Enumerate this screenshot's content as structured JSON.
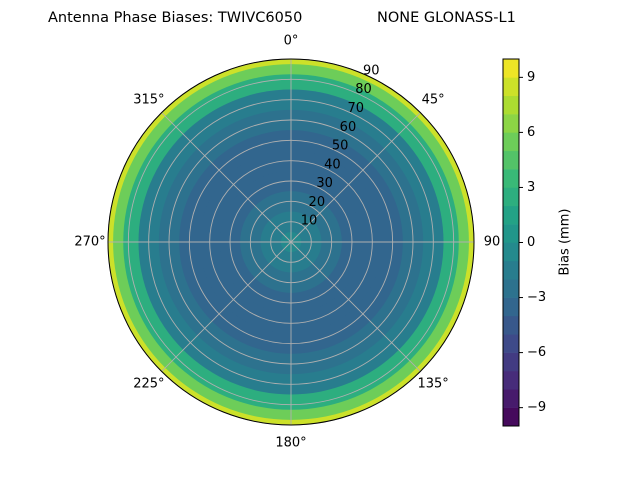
{
  "chart_data": {
    "type": "polar-contour",
    "title": "Antenna Phase Biases: TWIVC6050",
    "subtitle": "NONE GLONASS-L1",
    "angle_labels": [
      "0°",
      "45°",
      "90",
      "135°",
      "180°",
      "225°",
      "270°",
      "315°"
    ],
    "rlim": [
      0,
      90
    ],
    "rticks": [
      10,
      20,
      30,
      40,
      50,
      60,
      70,
      80,
      90
    ],
    "grid": true,
    "contour": {
      "zenith": [
        0,
        10,
        20,
        30,
        40,
        50,
        60,
        70,
        80,
        85,
        90
      ],
      "bias": [
        -1,
        -1.5,
        -2.5,
        -3.5,
        -4,
        -4,
        -3,
        -1.5,
        2,
        5,
        8
      ]
    },
    "colorbar": {
      "label": "Bias (mm)",
      "clim": [
        -10,
        10
      ],
      "ticks": [
        {
          "value": -9,
          "label": "−9"
        },
        {
          "value": -6,
          "label": "−6"
        },
        {
          "value": -3,
          "label": "−3"
        },
        0,
        3,
        6,
        9
      ]
    }
  }
}
